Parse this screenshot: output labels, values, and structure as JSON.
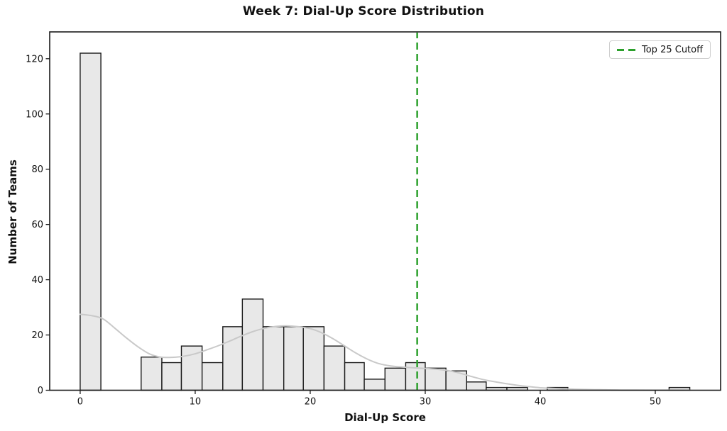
{
  "chart_data": {
    "type": "bar",
    "subtype": "histogram-with-kde",
    "title": "Week 7: Dial-Up Score Distribution",
    "xlabel": "Dial-Up Score",
    "ylabel": "Number of Teams",
    "legend": [
      {
        "label": "Top 25 Cutoff",
        "style": "dashed",
        "position": "upper right"
      }
    ],
    "xlim": [
      -2.65,
      55.68
    ],
    "ylim": [
      0,
      129.7
    ],
    "xticks": [
      0,
      10,
      20,
      30,
      40,
      50
    ],
    "yticks": [
      0,
      20,
      40,
      60,
      80,
      100,
      120
    ],
    "grid": false,
    "cutoff_line_x": 29.3,
    "bins": [
      {
        "start": 0.0,
        "end": 1.8,
        "count": 122
      },
      {
        "start": 1.8,
        "end": 3.5,
        "count": 0
      },
      {
        "start": 3.5,
        "end": 5.3,
        "count": 0
      },
      {
        "start": 5.3,
        "end": 7.1,
        "count": 12
      },
      {
        "start": 7.1,
        "end": 8.8,
        "count": 10
      },
      {
        "start": 8.8,
        "end": 10.6,
        "count": 16
      },
      {
        "start": 10.6,
        "end": 12.4,
        "count": 10
      },
      {
        "start": 12.4,
        "end": 14.1,
        "count": 23
      },
      {
        "start": 14.1,
        "end": 15.9,
        "count": 33
      },
      {
        "start": 15.9,
        "end": 17.7,
        "count": 23
      },
      {
        "start": 17.7,
        "end": 19.4,
        "count": 23
      },
      {
        "start": 19.4,
        "end": 21.2,
        "count": 23
      },
      {
        "start": 21.2,
        "end": 23.0,
        "count": 16
      },
      {
        "start": 23.0,
        "end": 24.7,
        "count": 10
      },
      {
        "start": 24.7,
        "end": 26.5,
        "count": 4
      },
      {
        "start": 26.5,
        "end": 28.3,
        "count": 8
      },
      {
        "start": 28.3,
        "end": 30.0,
        "count": 10
      },
      {
        "start": 30.0,
        "end": 31.8,
        "count": 8
      },
      {
        "start": 31.8,
        "end": 33.6,
        "count": 7
      },
      {
        "start": 33.6,
        "end": 35.3,
        "count": 3
      },
      {
        "start": 35.3,
        "end": 37.1,
        "count": 1
      },
      {
        "start": 37.1,
        "end": 38.9,
        "count": 1
      },
      {
        "start": 38.9,
        "end": 40.6,
        "count": 0
      },
      {
        "start": 40.6,
        "end": 42.4,
        "count": 1
      },
      {
        "start": 42.4,
        "end": 44.2,
        "count": 0
      },
      {
        "start": 44.2,
        "end": 45.9,
        "count": 0
      },
      {
        "start": 45.9,
        "end": 47.7,
        "count": 0
      },
      {
        "start": 47.7,
        "end": 49.5,
        "count": 0
      },
      {
        "start": 49.5,
        "end": 51.2,
        "count": 0
      },
      {
        "start": 51.2,
        "end": 53.0,
        "count": 1
      }
    ],
    "kde_curve": [
      [
        0,
        27.5
      ],
      [
        1,
        27.0
      ],
      [
        2,
        25.8
      ],
      [
        3,
        22.5
      ],
      [
        4,
        19.0
      ],
      [
        5,
        15.8
      ],
      [
        6,
        13.2
      ],
      [
        7,
        12.0
      ],
      [
        8,
        11.9
      ],
      [
        9,
        12.3
      ],
      [
        10,
        13.2
      ],
      [
        11,
        14.6
      ],
      [
        12,
        16.1
      ],
      [
        13,
        17.8
      ],
      [
        14,
        19.6
      ],
      [
        15,
        21.2
      ],
      [
        16,
        22.4
      ],
      [
        17,
        23.1
      ],
      [
        18,
        23.3
      ],
      [
        19,
        23.0
      ],
      [
        20,
        22.3
      ],
      [
        21,
        20.8
      ],
      [
        22,
        18.6
      ],
      [
        23,
        16.0
      ],
      [
        24,
        13.4
      ],
      [
        25,
        11.2
      ],
      [
        26,
        9.6
      ],
      [
        27,
        8.8
      ],
      [
        28,
        8.4
      ],
      [
        29,
        8.1
      ],
      [
        30,
        7.9
      ],
      [
        31,
        7.6
      ],
      [
        32,
        7.1
      ],
      [
        33,
        6.2
      ],
      [
        34,
        5.0
      ],
      [
        35,
        3.9
      ],
      [
        36,
        3.1
      ],
      [
        37,
        2.4
      ],
      [
        38,
        1.8
      ],
      [
        39,
        1.3
      ],
      [
        40,
        0.9
      ],
      [
        41,
        0.7
      ],
      [
        42,
        0.5
      ],
      [
        43,
        0.35
      ],
      [
        44,
        0.25
      ],
      [
        45,
        0.18
      ],
      [
        46,
        0.12
      ],
      [
        47,
        0.08
      ],
      [
        48,
        0.05
      ],
      [
        50,
        0.03
      ],
      [
        53,
        0.01
      ]
    ],
    "colors": {
      "bar_fill": "#e8e8e8",
      "bar_edge": "#1a1a1a",
      "kde_line": "#c9c9c9",
      "cutoff_line": "#2ca02c",
      "axis": "#1a1a1a",
      "text": "#111111",
      "legend_border": "#cfcfcf",
      "background": "#ffffff"
    }
  }
}
